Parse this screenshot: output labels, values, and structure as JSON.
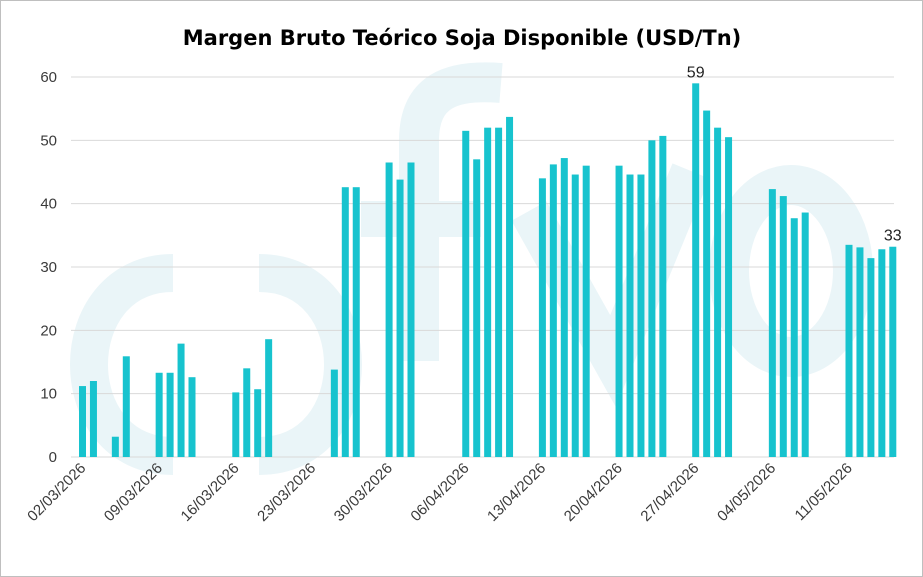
{
  "chart_data": {
    "type": "bar",
    "title": "Margen Bruto Teórico Soja Disponible (USD/Tn)",
    "xlabel": "",
    "ylabel": "",
    "ylim": [
      0,
      60
    ],
    "yticks": [
      0,
      10,
      20,
      30,
      40,
      50,
      60
    ],
    "grid": true,
    "legend": "none",
    "color": "#17C3CE",
    "watermark_color": "#EAF5F8",
    "x_tick_labels": [
      "02/03/2026",
      "09/03/2026",
      "16/03/2026",
      "23/03/2026",
      "30/03/2026",
      "06/04/2026",
      "13/04/2026",
      "20/04/2026",
      "27/04/2026",
      "04/05/2026",
      "11/05/2026"
    ],
    "start_date": "02/03/2026",
    "dates": [
      "02/03/2026",
      "03/03/2026",
      "04/03/2026",
      "05/03/2026",
      "06/03/2026",
      "07/03/2026",
      "08/03/2026",
      "09/03/2026",
      "10/03/2026",
      "11/03/2026",
      "12/03/2026",
      "13/03/2026",
      "14/03/2026",
      "15/03/2026",
      "16/03/2026",
      "17/03/2026",
      "18/03/2026",
      "19/03/2026",
      "20/03/2026",
      "21/03/2026",
      "22/03/2026",
      "23/03/2026",
      "24/03/2026",
      "25/03/2026",
      "26/03/2026",
      "27/03/2026",
      "28/03/2026",
      "29/03/2026",
      "30/03/2026",
      "31/03/2026",
      "01/04/2026",
      "02/04/2026",
      "03/04/2026",
      "04/04/2026",
      "05/04/2026",
      "06/04/2026",
      "07/04/2026",
      "08/04/2026",
      "09/04/2026",
      "10/04/2026",
      "11/04/2026",
      "12/04/2026",
      "13/04/2026",
      "14/04/2026",
      "15/04/2026",
      "16/04/2026",
      "17/04/2026",
      "18/04/2026",
      "19/04/2026",
      "20/04/2026",
      "21/04/2026",
      "22/04/2026",
      "23/04/2026",
      "24/04/2026",
      "25/04/2026",
      "26/04/2026",
      "27/04/2026",
      "28/04/2026",
      "29/04/2026",
      "30/04/2026",
      "01/05/2026",
      "02/05/2026",
      "03/05/2026",
      "04/05/2026",
      "05/05/2026",
      "06/05/2026",
      "07/05/2026",
      "08/05/2026",
      "09/05/2026",
      "10/05/2026",
      "11/05/2026",
      "12/05/2026",
      "13/05/2026",
      "14/05/2026",
      "15/05/2026"
    ],
    "values": [
      11.2,
      12.0,
      null,
      3.2,
      15.9,
      null,
      null,
      13.3,
      13.3,
      17.9,
      12.6,
      null,
      null,
      null,
      10.2,
      14.0,
      10.7,
      18.6,
      null,
      null,
      null,
      null,
      null,
      13.8,
      42.6,
      42.6,
      null,
      null,
      46.5,
      43.8,
      46.5,
      null,
      null,
      null,
      null,
      51.5,
      47.0,
      52.0,
      52.0,
      53.7,
      null,
      null,
      44.0,
      46.2,
      47.2,
      44.6,
      46.0,
      null,
      null,
      46.0,
      44.6,
      44.6,
      50.0,
      50.7,
      null,
      null,
      59.0,
      54.7,
      52.0,
      50.5,
      null,
      null,
      null,
      42.3,
      41.2,
      37.7,
      38.6,
      null,
      null,
      null,
      33.5,
      33.1,
      31.4,
      32.8,
      33.2
    ],
    "data_labels": [
      {
        "date": "27/04/2026",
        "text": "59"
      },
      {
        "date": "15/05/2026",
        "text": "33"
      }
    ]
  }
}
